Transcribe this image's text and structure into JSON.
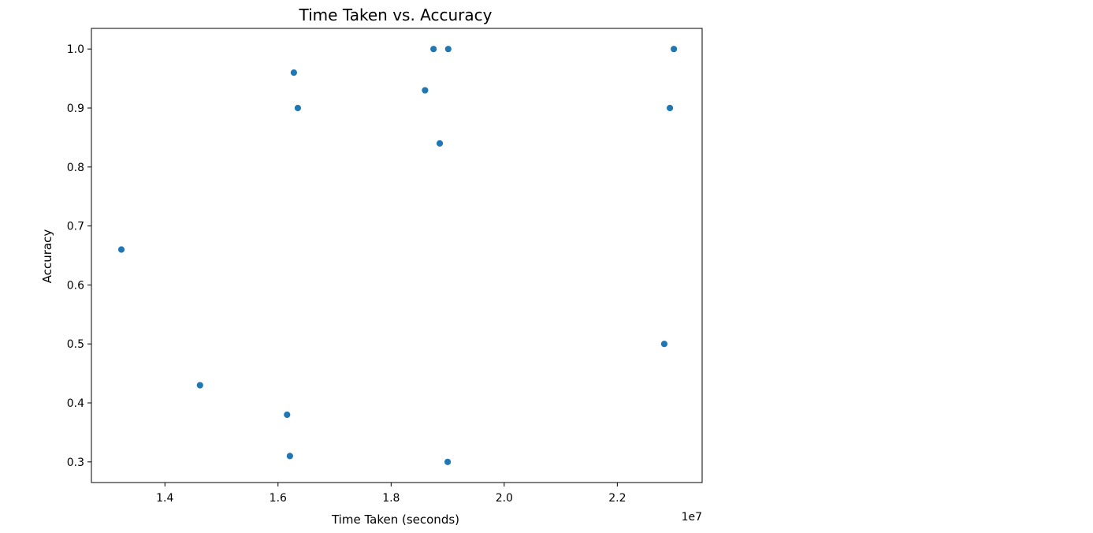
{
  "chart_data": {
    "type": "scatter",
    "title": "Time Taken vs. Accuracy",
    "xlabel": "Time Taken (seconds)",
    "ylabel": "Accuracy",
    "x_offset_label": "1e7",
    "xlim": [
      12700000,
      23500000
    ],
    "ylim": [
      0.265,
      1.035
    ],
    "x_ticks": [
      14000000,
      16000000,
      18000000,
      20000000,
      22000000
    ],
    "x_tick_labels": [
      "1.4",
      "1.6",
      "1.8",
      "2.0",
      "2.2"
    ],
    "y_ticks": [
      0.3,
      0.4,
      0.5,
      0.6,
      0.7,
      0.8,
      0.9,
      1.0
    ],
    "y_tick_labels": [
      "0.3",
      "0.4",
      "0.5",
      "0.6",
      "0.7",
      "0.8",
      "0.9",
      "1.0"
    ],
    "grid": false,
    "marker_color": "#1f77b4",
    "points": [
      {
        "x": 13230000,
        "y": 0.66
      },
      {
        "x": 14620000,
        "y": 0.43
      },
      {
        "x": 16160000,
        "y": 0.38
      },
      {
        "x": 16210000,
        "y": 0.31
      },
      {
        "x": 16280000,
        "y": 0.96
      },
      {
        "x": 16350000,
        "y": 0.9
      },
      {
        "x": 18600000,
        "y": 0.93
      },
      {
        "x": 18750000,
        "y": 1.0
      },
      {
        "x": 18860000,
        "y": 0.84
      },
      {
        "x": 19000000,
        "y": 0.3
      },
      {
        "x": 19010000,
        "y": 1.0
      },
      {
        "x": 22830000,
        "y": 0.5
      },
      {
        "x": 22930000,
        "y": 0.9
      },
      {
        "x": 23000000,
        "y": 1.0
      }
    ]
  }
}
